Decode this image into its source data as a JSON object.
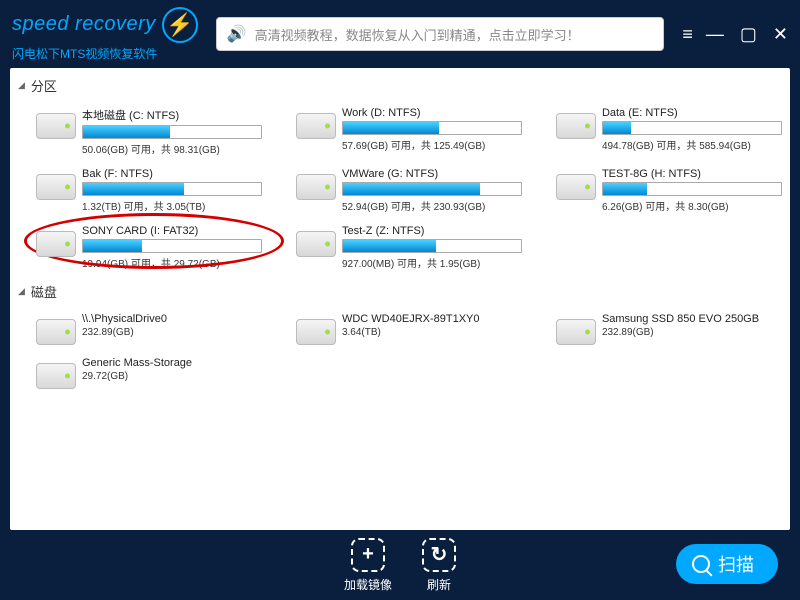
{
  "colors": {
    "bg": "#0a1f3d",
    "accent": "#00a8ff",
    "bar_gradient_top": "#4bd0ff",
    "bar_gradient_bottom": "#0088d4",
    "highlight": "#d40000"
  },
  "header": {
    "logo_text": "speed recovery",
    "logo_subtitle": "闪电松下MTS视频恢复软件",
    "banner_text": "高清视频教程，数据恢复从入门到精通，点击立即学习！"
  },
  "sections": {
    "partitions_title": "分区",
    "disks_title": "磁盘"
  },
  "partitions": [
    {
      "name": "本地磁盘 (C: NTFS)",
      "fill_pct": 49,
      "usage": "50.06(GB) 可用，共 98.31(GB)",
      "highlighted": false
    },
    {
      "name": "Work (D: NTFS)",
      "fill_pct": 54,
      "usage": "57.69(GB) 可用，共 125.49(GB)",
      "highlighted": false
    },
    {
      "name": "Data (E: NTFS)",
      "fill_pct": 16,
      "usage": "494.78(GB) 可用，共 585.94(GB)",
      "highlighted": false
    },
    {
      "name": "Bak (F: NTFS)",
      "fill_pct": 57,
      "usage": "1.32(TB) 可用，共 3.05(TB)",
      "highlighted": false
    },
    {
      "name": "VMWare (G: NTFS)",
      "fill_pct": 77,
      "usage": "52.94(GB) 可用，共 230.93(GB)",
      "highlighted": false
    },
    {
      "name": "TEST-8G (H: NTFS)",
      "fill_pct": 25,
      "usage": "6.26(GB) 可用，共 8.30(GB)",
      "highlighted": false
    },
    {
      "name": "SONY CARD (I: FAT32)",
      "fill_pct": 33,
      "usage": "19.94(GB) 可用，共 29.72(GB)",
      "highlighted": true
    },
    {
      "name": "Test-Z (Z: NTFS)",
      "fill_pct": 52,
      "usage": "927.00(MB) 可用，共 1.95(GB)",
      "highlighted": false
    }
  ],
  "disks": [
    {
      "name": "\\\\.\\PhysicalDrive0",
      "size": "232.89(GB)"
    },
    {
      "name": "WDC WD40EJRX-89T1XY0",
      "size": "3.64(TB)"
    },
    {
      "name": "Samsung SSD 850 EVO 250GB",
      "size": "232.89(GB)"
    },
    {
      "name": "Generic Mass-Storage",
      "size": "29.72(GB)"
    }
  ],
  "footer": {
    "load_image_label": "加载镜像",
    "refresh_label": "刷新",
    "scan_label": "扫描"
  }
}
